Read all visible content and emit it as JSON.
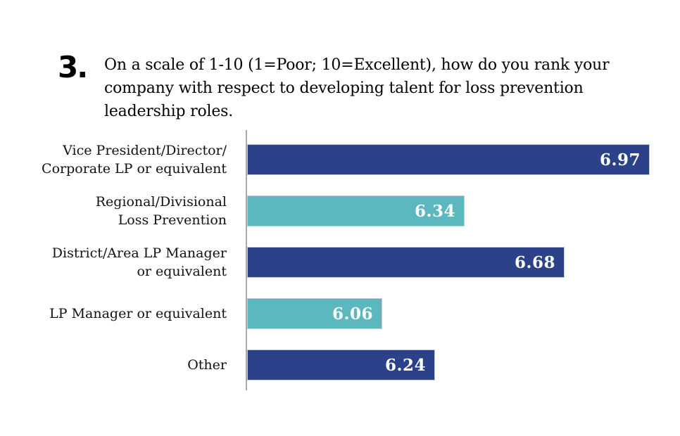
{
  "page": {
    "background": "#FFFFFF"
  },
  "question": {
    "number": "3.",
    "text": "On a scale of 1-10 (1=Poor; 10=Excellent), how do you rank your\ncompany with respect to developing talent for loss prevention\nleadership roles."
  },
  "chart_data": {
    "type": "bar",
    "orientation": "horizontal",
    "title": "",
    "xlabel": "",
    "ylabel": "",
    "categories": [
      "Vice President/Director/\nCorporate LP or equivalent",
      "Regional/Divisional\nLoss Prevention",
      "District/Area LP Manager\nor equivalent",
      "LP Manager or equivalent",
      "Other"
    ],
    "values": [
      6.97,
      6.34,
      6.68,
      6.06,
      6.24
    ],
    "value_labels": [
      "6.97",
      "6.34",
      "6.68",
      "6.06",
      "6.24"
    ],
    "bar_colors": [
      "#2B418A",
      "#5CB7BE",
      "#2B418A",
      "#5CB7BE",
      "#2B418A"
    ],
    "value_label_color": "#FFFFFF",
    "axis_line_color": "#A9A9A9",
    "xlim": [
      5.6,
      7.0
    ],
    "grid": false,
    "legend": "none"
  }
}
